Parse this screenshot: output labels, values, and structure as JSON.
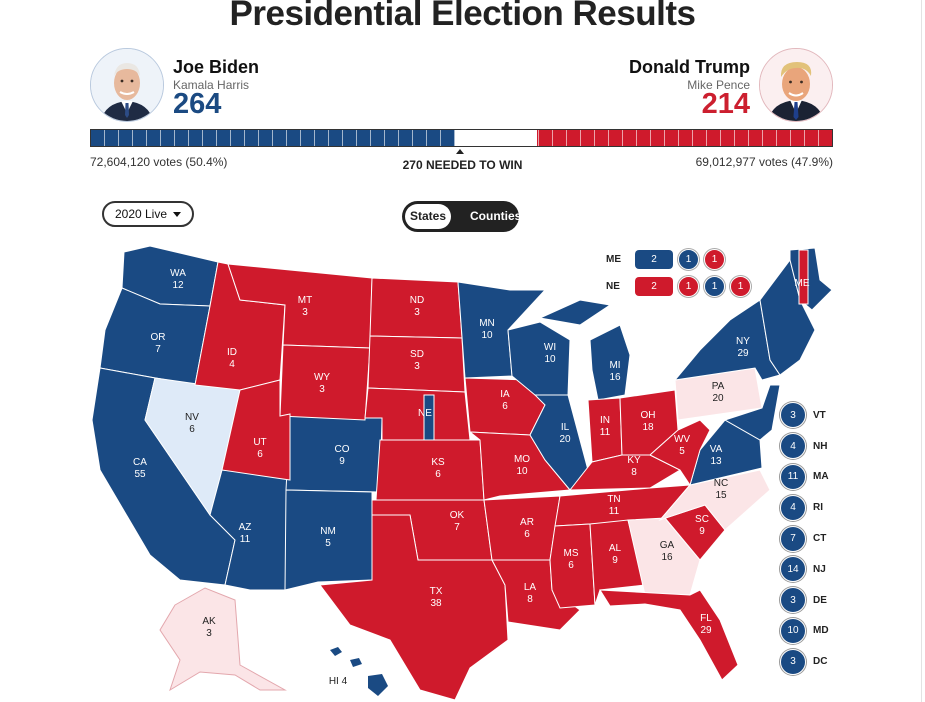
{
  "title": "Presidential Election Results",
  "candidates": {
    "biden": {
      "name": "Joe Biden",
      "running_mate": "Kamala Harris",
      "electoral_votes": "264",
      "popular_votes": "72,604,120 votes (50.4%)"
    },
    "trump": {
      "name": "Donald Trump",
      "running_mate": "Mike Pence",
      "electoral_votes": "214",
      "popular_votes": "69,012,977 votes (47.9%)"
    }
  },
  "bar": {
    "dem_ev": 264,
    "rep_ev": 214,
    "total": 538,
    "needed_label": "270 NEEDED TO WIN"
  },
  "controls": {
    "year_select": "2020 Live",
    "toggle_states": "States",
    "toggle_counties": "Counties"
  },
  "colors": {
    "dem": "#1a4a83",
    "rep": "#cf1a2c",
    "undecided_lean_dem": "#deeaf8",
    "undecided_lean_rep": "#fbe5e7"
  },
  "split_states": {
    "me": {
      "code": "ME",
      "statewide": "2",
      "districts": [
        "1",
        "1"
      ]
    },
    "ne": {
      "code": "NE",
      "statewide": "2",
      "districts": [
        "1",
        "1",
        "1"
      ]
    }
  },
  "states": {
    "WA": {
      "ev": "12"
    },
    "OR": {
      "ev": "7"
    },
    "CA": {
      "ev": "55"
    },
    "NV": {
      "ev": "6"
    },
    "ID": {
      "ev": "4"
    },
    "MT": {
      "ev": "3"
    },
    "WY": {
      "ev": "3"
    },
    "UT": {
      "ev": "6"
    },
    "AZ": {
      "ev": "11"
    },
    "CO": {
      "ev": "9"
    },
    "NM": {
      "ev": "5"
    },
    "ND": {
      "ev": "3"
    },
    "SD": {
      "ev": "3"
    },
    "NE": {
      "ev": ""
    },
    "KS": {
      "ev": "6"
    },
    "OK": {
      "ev": "7"
    },
    "TX": {
      "ev": "38"
    },
    "MN": {
      "ev": "10"
    },
    "IA": {
      "ev": "6"
    },
    "MO": {
      "ev": "10"
    },
    "AR": {
      "ev": "6"
    },
    "LA": {
      "ev": "8"
    },
    "WI": {
      "ev": "10"
    },
    "IL": {
      "ev": "20"
    },
    "MI": {
      "ev": "16"
    },
    "IN": {
      "ev": "11"
    },
    "OH": {
      "ev": "18"
    },
    "KY": {
      "ev": "8"
    },
    "TN": {
      "ev": "11"
    },
    "MS": {
      "ev": "6"
    },
    "AL": {
      "ev": "9"
    },
    "GA": {
      "ev": "16"
    },
    "FL": {
      "ev": "29"
    },
    "SC": {
      "ev": "9"
    },
    "NC": {
      "ev": "15"
    },
    "VA": {
      "ev": "13"
    },
    "WV": {
      "ev": "5"
    },
    "PA": {
      "ev": "20"
    },
    "NY": {
      "ev": "29"
    },
    "ME": {
      "ev": ""
    },
    "AK": {
      "ev": "3"
    },
    "HI": {
      "ev": "4"
    }
  },
  "small_states": [
    {
      "code": "VT",
      "ev": "3"
    },
    {
      "code": "NH",
      "ev": "4"
    },
    {
      "code": "MA",
      "ev": "11"
    },
    {
      "code": "RI",
      "ev": "4"
    },
    {
      "code": "CT",
      "ev": "7"
    },
    {
      "code": "NJ",
      "ev": "14"
    },
    {
      "code": "DE",
      "ev": "3"
    },
    {
      "code": "MD",
      "ev": "10"
    },
    {
      "code": "DC",
      "ev": "3"
    }
  ]
}
